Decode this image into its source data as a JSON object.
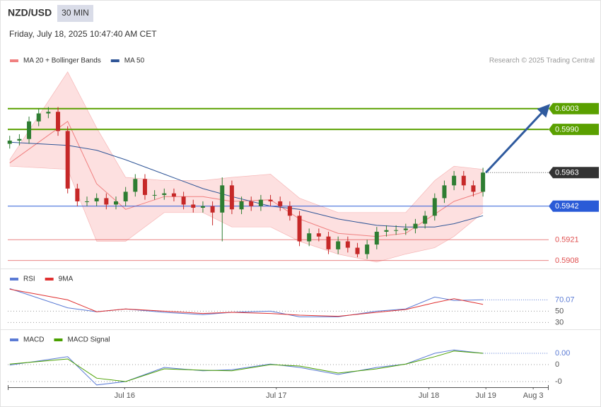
{
  "header": {
    "symbol": "NZD/USD",
    "interval": "30 MIN",
    "datetime": "Friday, July 18, 2025 10:47:40 AM CET",
    "credit": "Research © 2025 Trading Central"
  },
  "chart_data": [
    {
      "type": "candlestick",
      "open": [
        0.5981,
        0.5983,
        0.5984,
        0.5995,
        0.6,
        0.6001,
        0.5989,
        0.5953,
        0.5945,
        0.5945,
        0.5947,
        0.5943,
        0.5945,
        0.5951,
        0.5959,
        0.5949,
        0.5949,
        0.595,
        0.5948,
        0.5943,
        0.5941,
        0.5942,
        0.5938,
        0.5955,
        0.594,
        0.5945,
        0.5942,
        0.5946,
        0.5945,
        0.5942,
        0.5936,
        0.592,
        0.5925,
        0.5923,
        0.5915,
        0.592,
        0.5916,
        0.5912,
        0.5918,
        0.5926,
        0.5927,
        0.5927,
        0.5928,
        0.5931,
        0.5936,
        0.5947,
        0.5955,
        0.5961,
        0.5955,
        0.5951
      ],
      "high": [
        0.5986,
        0.5987,
        0.5998,
        0.6003,
        0.6004,
        0.6004,
        0.5992,
        0.5956,
        0.5948,
        0.595,
        0.595,
        0.5948,
        0.5954,
        0.5962,
        0.5962,
        0.5952,
        0.5953,
        0.5953,
        0.5951,
        0.5946,
        0.5945,
        0.5945,
        0.596,
        0.5958,
        0.5948,
        0.5948,
        0.5949,
        0.5949,
        0.5948,
        0.5945,
        0.5939,
        0.5928,
        0.5928,
        0.5926,
        0.5923,
        0.5923,
        0.5919,
        0.5921,
        0.5929,
        0.593,
        0.593,
        0.5931,
        0.5934,
        0.5939,
        0.595,
        0.5958,
        0.5964,
        0.5964,
        0.5958,
        0.5966
      ],
      "low": [
        0.5978,
        0.598,
        0.5981,
        0.5992,
        0.5997,
        0.5986,
        0.595,
        0.5942,
        0.5942,
        0.5942,
        0.594,
        0.594,
        0.5942,
        0.5948,
        0.5946,
        0.5946,
        0.5946,
        0.5945,
        0.594,
        0.5938,
        0.5938,
        0.593,
        0.592,
        0.5937,
        0.5937,
        0.5939,
        0.5939,
        0.5942,
        0.5939,
        0.5933,
        0.5917,
        0.5917,
        0.592,
        0.5912,
        0.5912,
        0.5913,
        0.591,
        0.5909,
        0.5915,
        0.5923,
        0.5924,
        0.5924,
        0.5925,
        0.5928,
        0.5933,
        0.5944,
        0.5952,
        0.5952,
        0.5948,
        0.5948
      ],
      "close": [
        0.5983,
        0.5984,
        0.5995,
        0.6,
        0.6001,
        0.5989,
        0.5953,
        0.5945,
        0.5945,
        0.5947,
        0.5943,
        0.5945,
        0.5951,
        0.5959,
        0.5949,
        0.5949,
        0.595,
        0.5948,
        0.5943,
        0.5941,
        0.5942,
        0.5938,
        0.5955,
        0.594,
        0.5945,
        0.5942,
        0.5946,
        0.5945,
        0.5942,
        0.5936,
        0.592,
        0.5925,
        0.5923,
        0.5915,
        0.592,
        0.5916,
        0.5912,
        0.5918,
        0.5926,
        0.5927,
        0.5927,
        0.5928,
        0.5931,
        0.5936,
        0.5947,
        0.5955,
        0.5961,
        0.5955,
        0.5951,
        0.5963
      ],
      "up_color": "#2e7d32",
      "down_color": "#c62828",
      "xlim": [
        -0.2,
        55.8
      ],
      "ylim": [
        0.5903,
        0.604
      ],
      "bands": {
        "name": "MA 20 + Bollinger Bands",
        "color": "#f08080",
        "fill": "#fde0e0",
        "x": [
          0,
          6,
          9,
          12,
          16,
          20,
          23,
          27,
          30,
          34,
          38,
          41,
          44,
          46,
          49
        ],
        "upper": [
          0.5971,
          0.6026,
          0.5991,
          0.596,
          0.5958,
          0.5958,
          0.596,
          0.5962,
          0.5947,
          0.5938,
          0.5938,
          0.5938,
          0.5958,
          0.5967,
          0.5965
        ],
        "middle": [
          0.5969,
          0.5995,
          0.5956,
          0.594,
          0.5948,
          0.5948,
          0.5945,
          0.5946,
          0.5934,
          0.5925,
          0.5923,
          0.5925,
          0.5937,
          0.5945,
          0.5951
        ],
        "lower": [
          0.5967,
          0.5965,
          0.592,
          0.592,
          0.5938,
          0.5938,
          0.5929,
          0.5929,
          0.592,
          0.5912,
          0.5907,
          0.5912,
          0.5916,
          0.5923,
          0.5938
        ]
      },
      "ma50": {
        "name": "MA 50",
        "color": "#2f5597",
        "x": [
          0,
          6,
          9,
          12,
          16,
          20,
          23,
          27,
          30,
          34,
          38,
          41,
          44,
          46,
          49
        ],
        "values": [
          0.5982,
          0.598,
          0.5977,
          0.5971,
          0.5962,
          0.5953,
          0.5948,
          0.5942,
          0.594,
          0.5934,
          0.593,
          0.5929,
          0.5929,
          0.5931,
          0.5936
        ]
      },
      "levels": [
        {
          "value": 0.6003,
          "color": "#5aa000",
          "style": "box"
        },
        {
          "value": {
            "value": 0.599,
            "label": "0.5990"
          },
          "color": "#5aa000",
          "style": "box"
        },
        {
          "value": 0.5963,
          "color": "#333333",
          "style": "current"
        },
        {
          "value": 0.5942,
          "color": "#2a5bd7",
          "style": "box"
        },
        {
          "value": 0.5921,
          "color": "#e05050",
          "style": "text"
        },
        {
          "value": 0.5908,
          "color": "#e05050",
          "style": "text"
        }
      ],
      "arrow": {
        "x": [
          49.3,
          55.5
        ],
        "values": [
          0.5963,
          0.6003
        ],
        "color": "#2f5a9e"
      }
    },
    {
      "type": "line",
      "xlim": [
        -0.2,
        55.8
      ],
      "ylim": [
        18,
        118
      ],
      "yticks": [
        30,
        50
      ],
      "series": [
        {
          "name": "RSI",
          "color": "#5b7bd5",
          "x": [
            0,
            6,
            9,
            12,
            16,
            20,
            23,
            27,
            30,
            34,
            38,
            41,
            44,
            46,
            49
          ],
          "values": [
            90,
            56,
            49,
            54,
            48,
            44,
            48,
            50,
            40,
            40,
            50,
            54,
            75,
            69,
            70.07
          ]
        },
        {
          "name": "9MA",
          "color": "#e03030",
          "x": [
            0,
            6,
            9,
            12,
            16,
            20,
            23,
            27,
            30,
            34,
            38,
            41,
            44,
            46,
            49
          ],
          "values": [
            89,
            70,
            49,
            54,
            50,
            46,
            48,
            46,
            43,
            41,
            48,
            53,
            65,
            72,
            62
          ]
        }
      ]
    },
    {
      "type": "line",
      "xlim": [
        -0.2,
        55.8
      ],
      "ylim": [
        -0.0008,
        0.0012
      ],
      "yticks": [
        0,
        {
          "value": -0.0006,
          "label": "-0"
        }
      ],
      "xticks": [
        {
          "value": 11.9,
          "label": "Jul 16"
        },
        {
          "value": 27.6,
          "label": "Jul 17"
        },
        {
          "value": 43.4,
          "label": "Jul 18"
        },
        {
          "value": 49.3,
          "label": "Jul 19"
        },
        {
          "value": 54.2,
          "label": "Aug 3"
        }
      ],
      "series": [
        {
          "name": "MACD",
          "color": "#5b7bd5",
          "x": [
            0,
            6,
            9,
            12,
            16,
            20,
            23,
            27,
            30,
            34,
            38,
            41,
            44,
            46,
            49
          ],
          "values": [
            -2e-05,
            0.00028,
            -0.00072,
            -0.0006,
            -0.0001,
            -0.00022,
            -0.00018,
            2e-05,
            -0.0001,
            -0.00035,
            -0.0001,
            2e-05,
            0.0004,
            0.00052,
            0.0004
          ],
          "value_labels": [
            null,
            null,
            null,
            null,
            null,
            null,
            null,
            null,
            null,
            null,
            null,
            null,
            null,
            null,
            "0.00"
          ]
        },
        {
          "name": "MACD Signal",
          "color": "#4aa000",
          "x": [
            0,
            6,
            9,
            12,
            16,
            20,
            23,
            27,
            30,
            34,
            38,
            41,
            44,
            46,
            49
          ],
          "values": [
            2e-05,
            0.0002,
            -0.00048,
            -0.0006,
            -0.00015,
            -0.0002,
            -0.00022,
            0,
            -5e-05,
            -0.0003,
            -0.00015,
            2e-05,
            0.00028,
            0.00048,
            0.0004
          ]
        }
      ]
    }
  ]
}
